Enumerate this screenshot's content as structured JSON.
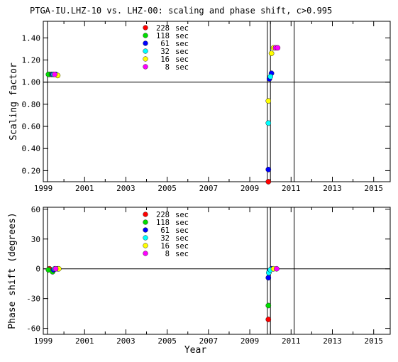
{
  "title": "PTGA-IU.LHZ-10 vs. LHZ-00: scaling and phase shift, c>0.995",
  "chart_data": [
    {
      "type": "scatter",
      "title": "PTGA-IU.LHZ-10 vs. LHZ-00: scaling and phase shift, c>0.995",
      "xlabel": "",
      "ylabel": "Scaling factor",
      "xlim": [
        1999,
        2015.8
      ],
      "ylim": [
        0.1,
        1.55
      ],
      "xticks": [
        1999,
        2001,
        2003,
        2005,
        2007,
        2009,
        2011,
        2013,
        2015
      ],
      "xticklabels": [
        "1999",
        "2001",
        "2003",
        "2005",
        "2007",
        "2009",
        "2011",
        "2013",
        "2015"
      ],
      "yticks": [
        0.2,
        0.4,
        0.6,
        0.8,
        1.0,
        1.2,
        1.4
      ],
      "yticklabels": [
        "0.20",
        "0.40",
        "0.60",
        "0.80",
        "1.00",
        "1.20",
        "1.40"
      ],
      "reference_lines": {
        "horizontal": [
          1.0
        ],
        "vertical": [
          1999.2,
          2009.85,
          2010.0,
          2011.15
        ]
      },
      "legend": {
        "placement": "top-center"
      },
      "series": [
        {
          "name": "228 sec",
          "color": "#ff0000",
          "points": [
            [
              1999.3,
              1.07
            ],
            [
              2009.9,
              0.1
            ]
          ]
        },
        {
          "name": "118 sec",
          "color": "#00dd00",
          "points": [
            [
              1999.25,
              1.07
            ],
            [
              1999.4,
              1.07
            ]
          ]
        },
        {
          "name": "61 sec",
          "color": "#0000ff",
          "points": [
            [
              1999.45,
              1.07
            ],
            [
              1999.6,
              1.07
            ],
            [
              2009.9,
              0.21
            ],
            [
              2009.95,
              1.03
            ],
            [
              2010.05,
              1.08
            ]
          ]
        },
        {
          "name": "32 sec",
          "color": "#00ffff",
          "points": [
            [
              1999.5,
              1.07
            ],
            [
              2009.9,
              0.63
            ],
            [
              2010.0,
              1.05
            ]
          ]
        },
        {
          "name": "16 sec",
          "color": "#ffff00",
          "points": [
            [
              1999.7,
              1.06
            ],
            [
              2009.9,
              0.83
            ],
            [
              2010.05,
              1.26
            ],
            [
              2010.15,
              1.31
            ]
          ]
        },
        {
          "name": "8 sec",
          "color": "#ff00ff",
          "points": [
            [
              1999.55,
              1.07
            ],
            [
              2010.25,
              1.31
            ],
            [
              2010.35,
              1.31
            ]
          ]
        }
      ]
    },
    {
      "type": "scatter",
      "title": "",
      "xlabel": "Year",
      "ylabel": "Phase shift (degrees)",
      "xlim": [
        1999,
        2015.8
      ],
      "ylim": [
        -66,
        62
      ],
      "xticks": [
        1999,
        2001,
        2003,
        2005,
        2007,
        2009,
        2011,
        2013,
        2015
      ],
      "xticklabels": [
        "1999",
        "2001",
        "2003",
        "2005",
        "2007",
        "2009",
        "2011",
        "2013",
        "2015"
      ],
      "yticks": [
        60,
        30,
        0,
        -30,
        -60
      ],
      "yticklabels": [
        "60",
        "30",
        "0",
        "-30",
        "-60"
      ],
      "reference_lines": {
        "horizontal": [
          0
        ],
        "vertical": [
          1999.2,
          2009.85,
          2010.0,
          2011.15
        ]
      },
      "legend": {
        "placement": "top-center"
      },
      "series": [
        {
          "name": "228 sec",
          "color": "#ff0000",
          "points": [
            [
              1999.3,
              0
            ],
            [
              2009.9,
              -51
            ]
          ]
        },
        {
          "name": "118 sec",
          "color": "#00dd00",
          "points": [
            [
              1999.25,
              -1
            ],
            [
              1999.45,
              -3
            ],
            [
              2009.9,
              -37
            ]
          ]
        },
        {
          "name": "61 sec",
          "color": "#0000ff",
          "points": [
            [
              1999.5,
              -1
            ],
            [
              1999.7,
              0
            ],
            [
              2009.9,
              -9
            ],
            [
              2009.95,
              -2
            ],
            [
              2010.05,
              0
            ]
          ]
        },
        {
          "name": "32 sec",
          "color": "#00ffff",
          "points": [
            [
              1999.55,
              0
            ],
            [
              2009.92,
              -4
            ],
            [
              2010.0,
              -1
            ]
          ]
        },
        {
          "name": "16 sec",
          "color": "#ffff00",
          "points": [
            [
              1999.75,
              0
            ],
            [
              2010.15,
              0
            ]
          ]
        },
        {
          "name": "8 sec",
          "color": "#ff00ff",
          "points": [
            [
              1999.6,
              0
            ],
            [
              2010.3,
              0
            ]
          ]
        }
      ]
    }
  ]
}
